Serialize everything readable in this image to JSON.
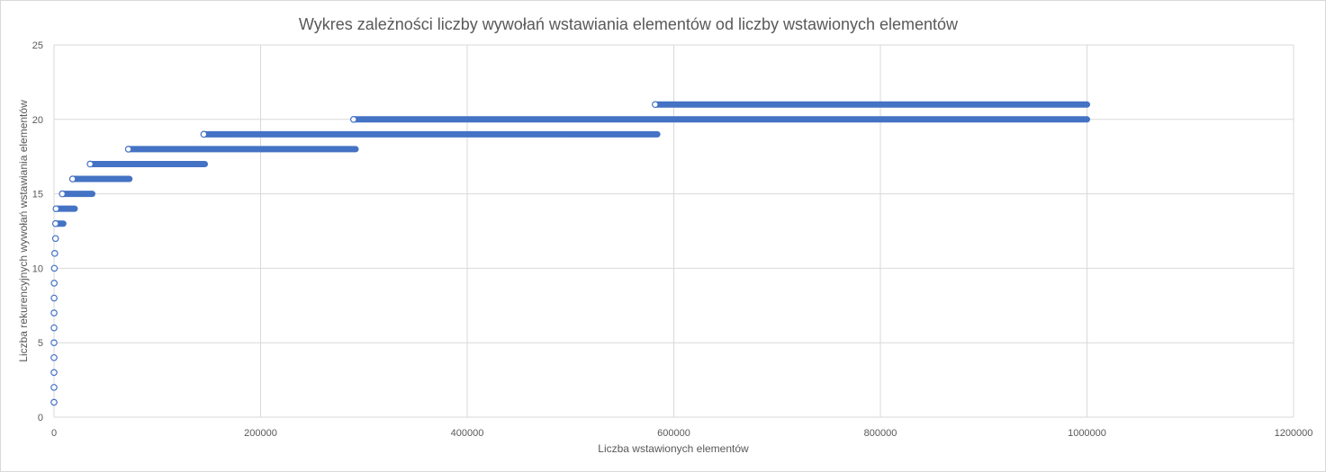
{
  "chart_data": {
    "type": "scatter",
    "title": "Wykres zależności liczby wywołań wstawiania elementów od liczby wstawionych elementów",
    "xlabel": "Liczba wstawionych elementów",
    "ylabel": "Liczba rekurencyjnych wywołań wstawiania elementów",
    "xlim": [
      0,
      1200000
    ],
    "ylim": [
      0,
      25
    ],
    "x_ticks": [
      0,
      200000,
      400000,
      600000,
      800000,
      1000000,
      1200000
    ],
    "y_ticks": [
      0,
      5,
      10,
      15,
      20,
      25
    ],
    "grid": true,
    "legend": "none",
    "marker": "hollow-circle",
    "colors": {
      "series": "#4472c4",
      "grid": "#d9d9d9",
      "text": "#595959"
    },
    "series": [
      {
        "values": [
          {
            "y": 1,
            "x_from": 1,
            "x_to": 1
          },
          {
            "y": 2,
            "x_from": 2,
            "x_to": 2
          },
          {
            "y": 3,
            "x_from": 3,
            "x_to": 5
          },
          {
            "y": 4,
            "x_from": 6,
            "x_to": 11
          },
          {
            "y": 5,
            "x_from": 12,
            "x_to": 22
          },
          {
            "y": 6,
            "x_from": 23,
            "x_to": 45
          },
          {
            "y": 7,
            "x_from": 46,
            "x_to": 90
          },
          {
            "y": 8,
            "x_from": 91,
            "x_to": 180
          },
          {
            "y": 9,
            "x_from": 181,
            "x_to": 360
          },
          {
            "y": 10,
            "x_from": 361,
            "x_to": 720
          },
          {
            "y": 11,
            "x_from": 721,
            "x_to": 1440
          },
          {
            "y": 12,
            "x_from": 1441,
            "x_to": 4000
          },
          {
            "y": 13,
            "x_from": 1500,
            "x_to": 9000
          },
          {
            "y": 14,
            "x_from": 2000,
            "x_to": 20000
          },
          {
            "y": 15,
            "x_from": 8000,
            "x_to": 37000
          },
          {
            "y": 16,
            "x_from": 18000,
            "x_to": 73000
          },
          {
            "y": 17,
            "x_from": 35000,
            "x_to": 146000
          },
          {
            "y": 18,
            "x_from": 72000,
            "x_to": 292000
          },
          {
            "y": 19,
            "x_from": 145000,
            "x_to": 584000
          },
          {
            "y": 20,
            "x_from": 290000,
            "x_to": 1000000
          },
          {
            "y": 21,
            "x_from": 582000,
            "x_to": 1000000
          }
        ]
      }
    ]
  }
}
